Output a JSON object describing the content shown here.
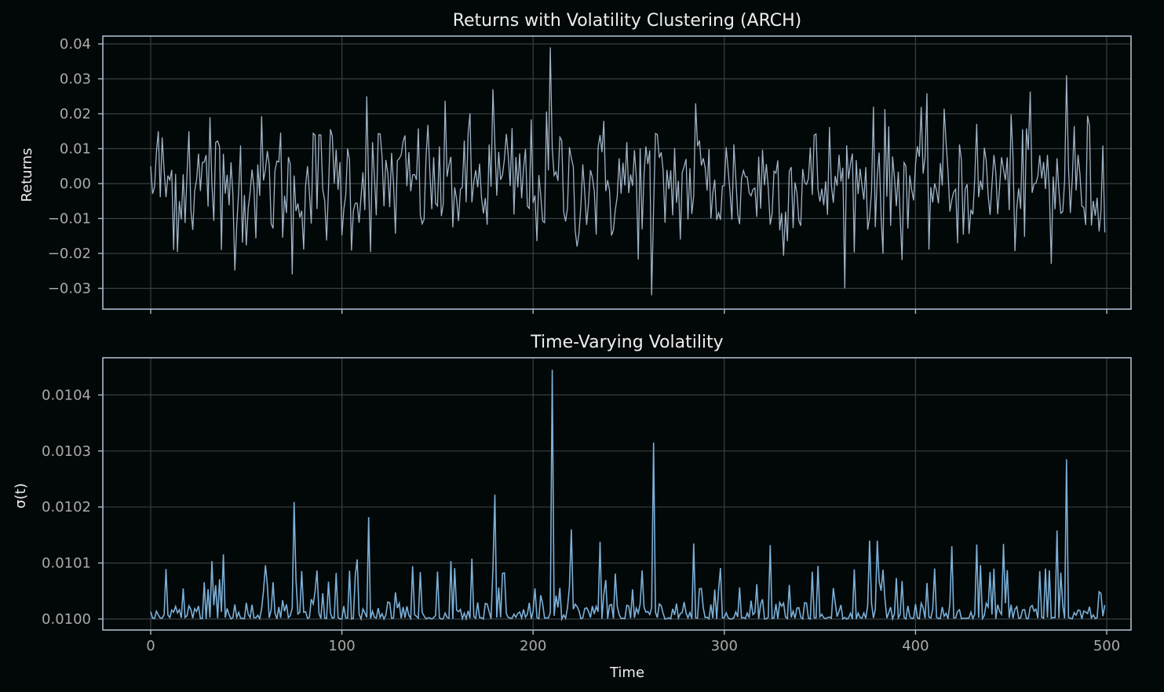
{
  "figure": {
    "background": "#020708",
    "spine_color": "#a9bccb",
    "grid_color": "#3a3f40"
  },
  "chart_data": [
    {
      "type": "line",
      "title": "Returns with Volatility Clustering (ARCH)",
      "xlabel": "",
      "ylabel": "Returns",
      "xlim": [
        -25,
        520
      ],
      "ylim": [
        -0.036,
        0.042
      ],
      "xticks": [
        0,
        100,
        200,
        300,
        400,
        500
      ],
      "xtick_labels_visible": false,
      "yticks": [
        0.04,
        0.03,
        0.02,
        0.01,
        0.0,
        -0.01,
        -0.02,
        -0.03
      ],
      "ytick_labels": [
        "0.04",
        "0.03",
        "0.02",
        "0.01",
        "0.00",
        "−0.01",
        "−0.02",
        "−0.03"
      ],
      "grid": true,
      "line_color": "#9fb4c7",
      "series": [
        {
          "name": "Returns",
          "x_start": 0,
          "x_step": 1,
          "n": 500,
          "key_points": [
            {
              "x": 0,
              "y": 0.005
            },
            {
              "x": 2,
              "y": -0.001
            },
            {
              "x": 4,
              "y": 0.015
            },
            {
              "x": 12,
              "y": -0.019
            },
            {
              "x": 20,
              "y": 0.015
            },
            {
              "x": 31,
              "y": 0.019
            },
            {
              "x": 37,
              "y": -0.019
            },
            {
              "x": 74,
              "y": 0.016
            },
            {
              "x": 74,
              "y": -0.026
            },
            {
              "x": 113,
              "y": 0.025
            },
            {
              "x": 179,
              "y": 0.027
            },
            {
              "x": 209,
              "y": 0.039
            },
            {
              "x": 262,
              "y": -0.032
            },
            {
              "x": 285,
              "y": 0.023
            },
            {
              "x": 378,
              "y": 0.022
            },
            {
              "x": 471,
              "y": -0.023
            },
            {
              "x": 479,
              "y": 0.031
            },
            {
              "x": 499,
              "y": -0.014
            }
          ]
        }
      ]
    },
    {
      "type": "line",
      "title": "Time-Varying Volatility",
      "xlabel": "Time",
      "ylabel": "σ(t)",
      "xlim": [
        -25,
        520
      ],
      "ylim": [
        0.009998,
        0.010047
      ],
      "xticks": [
        0,
        100,
        200,
        300,
        400,
        500
      ],
      "xtick_labels": [
        "0",
        "100",
        "200",
        "300",
        "400",
        "500"
      ],
      "yticks": [
        0.0104,
        0.0103,
        0.0102,
        0.0101,
        0.01
      ],
      "ytick_labels": [
        "0.0104",
        "0.0103",
        "0.0102",
        "0.0101",
        "0.0100"
      ],
      "grid": true,
      "line_color": "#7bb0d8",
      "series": [
        {
          "name": "sigma(t)",
          "x_start": 0,
          "x_step": 1,
          "n": 500,
          "baseline": 0.01,
          "key_points": [
            {
              "x": 4,
              "y": 0.010007
            },
            {
              "x": 7,
              "y": 0.010008
            },
            {
              "x": 14,
              "y": 0.010011
            },
            {
              "x": 32,
              "y": 0.0101035
            },
            {
              "x": 38,
              "y": 0.0101155
            },
            {
              "x": 75,
              "y": 0.010209
            },
            {
              "x": 80,
              "y": 0.010012
            },
            {
              "x": 108,
              "y": 0.0101065
            },
            {
              "x": 112,
              "y": 0.010011
            },
            {
              "x": 114,
              "y": 0.010182
            },
            {
              "x": 157,
              "y": 0.0101035
            },
            {
              "x": 168,
              "y": 0.010108
            },
            {
              "x": 180,
              "y": 0.010222
            },
            {
              "x": 210,
              "y": 0.010445
            },
            {
              "x": 220,
              "y": 0.01016
            },
            {
              "x": 235,
              "y": 0.010138
            },
            {
              "x": 263,
              "y": 0.010315
            },
            {
              "x": 284,
              "y": 0.010135
            },
            {
              "x": 324,
              "y": 0.010132
            },
            {
              "x": 376,
              "y": 0.01014
            },
            {
              "x": 380,
              "y": 0.01014
            },
            {
              "x": 419,
              "y": 0.01013
            },
            {
              "x": 432,
              "y": 0.010133
            },
            {
              "x": 446,
              "y": 0.010134
            },
            {
              "x": 474,
              "y": 0.010158
            },
            {
              "x": 479,
              "y": 0.010285
            },
            {
              "x": 499,
              "y": 0.010025
            }
          ]
        }
      ]
    }
  ]
}
